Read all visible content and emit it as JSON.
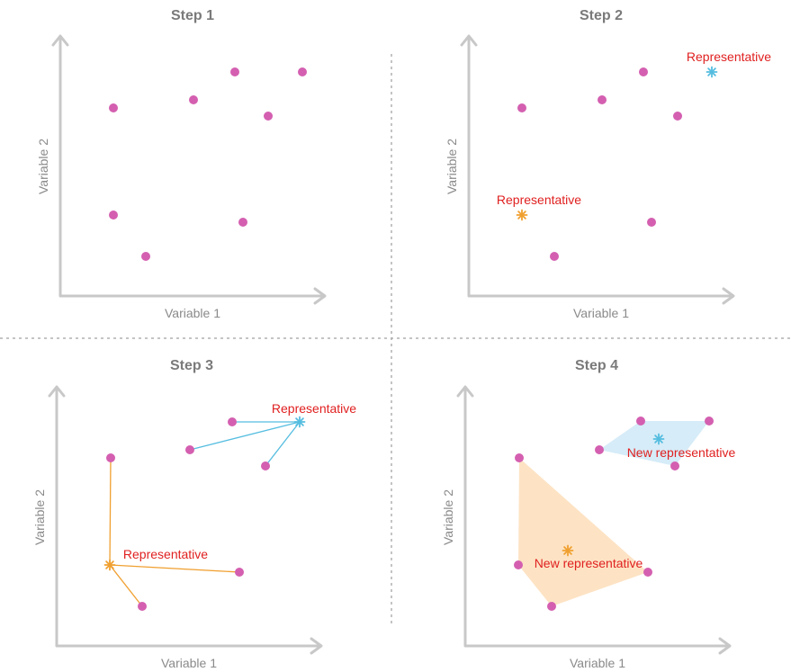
{
  "colors": {
    "point": "#d45fb0",
    "cluster_orange": "#f0a030",
    "cluster_blue": "#55bde0",
    "hull_orange": "#fde3c4",
    "hull_blue": "#d6ecf8",
    "label_red": "#e02020"
  },
  "axes": {
    "x_label": "Variable 1",
    "y_label": "Variable 2"
  },
  "panels": [
    {
      "title": "Step 1",
      "rep_label": ""
    },
    {
      "title": "Step 2",
      "rep_label": "Representative"
    },
    {
      "title": "Step 3",
      "rep_label": "Representative"
    },
    {
      "title": "Step 4",
      "rep_label": "New representative"
    }
  ],
  "star_icon": "asterisk-icon"
}
